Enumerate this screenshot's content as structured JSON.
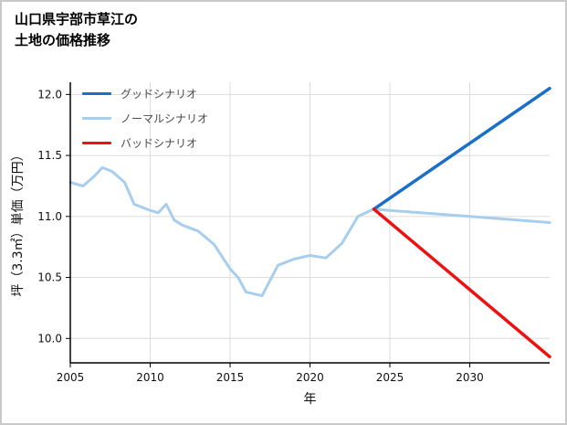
{
  "title": {
    "line1": "山口県宇部市草江の",
    "line2": "土地の価格推移"
  },
  "chart_data": {
    "type": "line",
    "title": "山口県宇部市草江の土地の価格推移",
    "xlabel": "年",
    "ylabel": "坪（3.3㎡）単価（万円）",
    "xlim": [
      2005,
      2035
    ],
    "ylim": [
      9.8,
      12.1
    ],
    "xticks": [
      2005,
      2010,
      2015,
      2020,
      2025,
      2030
    ],
    "yticks": [
      10.0,
      10.5,
      11.0,
      11.5,
      12.0
    ],
    "grid": true,
    "legend_position": "upper-left",
    "colors": {
      "good": "#1a6fc7",
      "normal": "#a8ceee",
      "bad": "#ee1111",
      "gridline": "#dcdcdc",
      "axis": "#000000"
    },
    "legend": [
      {
        "id": "good-scenario",
        "label": "グッドシナリオ",
        "color": "#1a6fc7"
      },
      {
        "id": "normal-scenario",
        "label": "ノーマルシナリオ",
        "color": "#a8ceee"
      },
      {
        "id": "bad-scenario",
        "label": "バッドシナリオ",
        "color": "#ee1111"
      }
    ],
    "series": [
      {
        "id": "normal-scenario",
        "name": "ノーマルシナリオ",
        "color": "#a8ceee",
        "width": 3,
        "points": [
          [
            2005,
            11.28
          ],
          [
            2005.8,
            11.25
          ],
          [
            2006.5,
            11.33
          ],
          [
            2007,
            11.4
          ],
          [
            2007.6,
            11.37
          ],
          [
            2008.4,
            11.28
          ],
          [
            2009,
            11.1
          ],
          [
            2010,
            11.05
          ],
          [
            2010.5,
            11.03
          ],
          [
            2011,
            11.1
          ],
          [
            2011.5,
            10.97
          ],
          [
            2012,
            10.93
          ],
          [
            2013,
            10.88
          ],
          [
            2014,
            10.77
          ],
          [
            2015,
            10.57
          ],
          [
            2015.5,
            10.5
          ],
          [
            2016,
            10.38
          ],
          [
            2017,
            10.35
          ],
          [
            2018,
            10.6
          ],
          [
            2019,
            10.65
          ],
          [
            2020,
            10.68
          ],
          [
            2021,
            10.66
          ],
          [
            2022,
            10.78
          ],
          [
            2023,
            11.0
          ],
          [
            2024,
            11.06
          ],
          [
            2025,
            11.05
          ],
          [
            2030,
            11.0
          ],
          [
            2035,
            10.95
          ]
        ]
      },
      {
        "id": "good-scenario",
        "name": "グッドシナリオ",
        "color": "#1a6fc7",
        "width": 3.5,
        "points": [
          [
            2024,
            11.06
          ],
          [
            2035,
            12.05
          ]
        ]
      },
      {
        "id": "bad-scenario",
        "name": "バッドシナリオ",
        "color": "#ee1111",
        "width": 3.5,
        "points": [
          [
            2024,
            11.06
          ],
          [
            2035,
            9.85
          ]
        ]
      }
    ]
  }
}
